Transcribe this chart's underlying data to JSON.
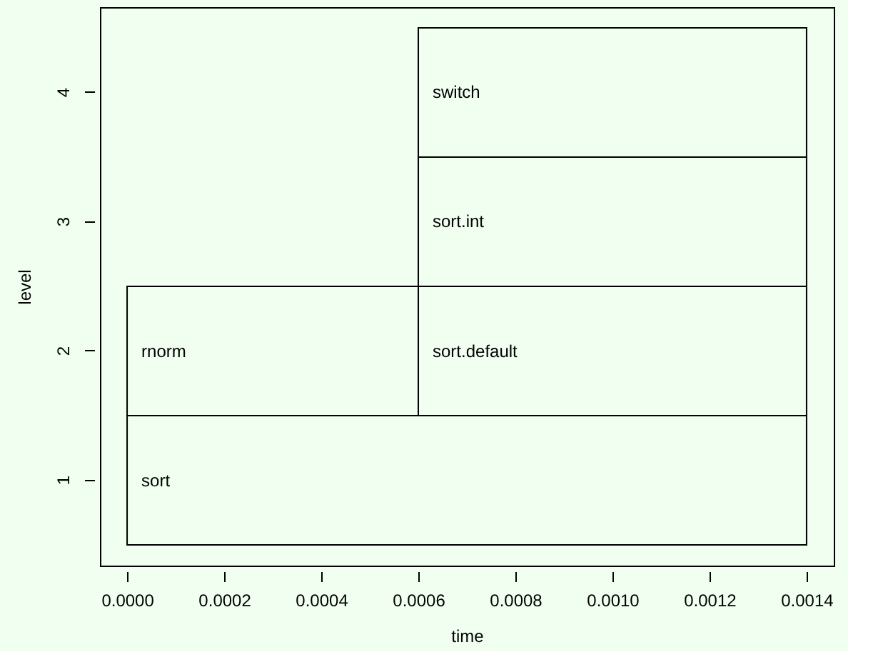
{
  "chart_data": {
    "type": "bar",
    "orientation": "horizontal",
    "xlabel": "time",
    "ylabel": "level",
    "categories": [
      "4",
      "3",
      "2",
      "1"
    ],
    "series": [
      {
        "color": "#f0fff0",
        "values": [
          null,
          null,
          0.0006,
          0.0014
        ],
        "base": [
          null,
          null,
          0,
          0
        ],
        "value_labels": [
          null,
          null,
          "rnorm",
          "sort"
        ]
      },
      {
        "color": "#f0fff0",
        "values": [
          0.0008,
          0.0008,
          0.0008,
          null
        ],
        "base": [
          0.0006,
          0.0006,
          0.0006,
          null
        ],
        "value_labels": [
          "switch",
          "sort.int",
          "sort.default",
          null
        ]
      }
    ],
    "xlim": [
      -5.6e-05,
      0.001456
    ],
    "xticks": [
      {
        "value": 0,
        "label": "0.0000"
      },
      {
        "value": 0.0002,
        "label": "0.0002"
      },
      {
        "value": 0.0004,
        "label": "0.0004"
      },
      {
        "value": 0.0006,
        "label": "0.0006"
      },
      {
        "value": 0.0008,
        "label": "0.0008"
      },
      {
        "value": 0.001,
        "label": "0.0010"
      },
      {
        "value": 0.0012,
        "label": "0.0012"
      },
      {
        "value": 0.0014,
        "label": "0.0014"
      }
    ]
  }
}
